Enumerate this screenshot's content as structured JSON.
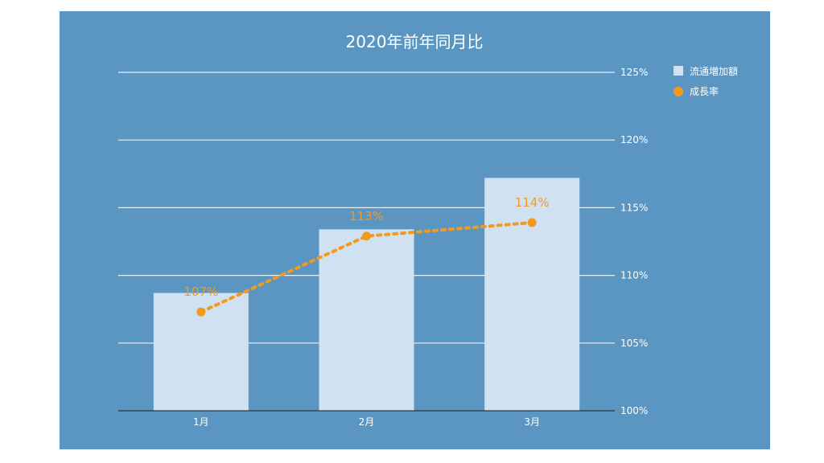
{
  "chart_data": {
    "type": "bar+line",
    "title": "2020年前年同月比",
    "categories": [
      "1月",
      "2月",
      "3月"
    ],
    "series": [
      {
        "name": "流通増加額",
        "type": "bar",
        "values": [
          108.7,
          113.4,
          117.2
        ]
      },
      {
        "name": "成長率",
        "type": "line",
        "values": [
          107.3,
          112.9,
          113.9
        ],
        "labels": [
          "107%",
          "113%",
          "114%"
        ]
      }
    ],
    "y_right": {
      "min": 100,
      "max": 125,
      "ticks": [
        "100%",
        "105%",
        "110%",
        "115%",
        "120%",
        "125%"
      ]
    },
    "grid": true,
    "legend": "right-top",
    "colors": {
      "background": "#5a96c1",
      "bar": "#d0e2f2",
      "line": "#f39a1e",
      "grid": "#e8f1f8"
    }
  }
}
